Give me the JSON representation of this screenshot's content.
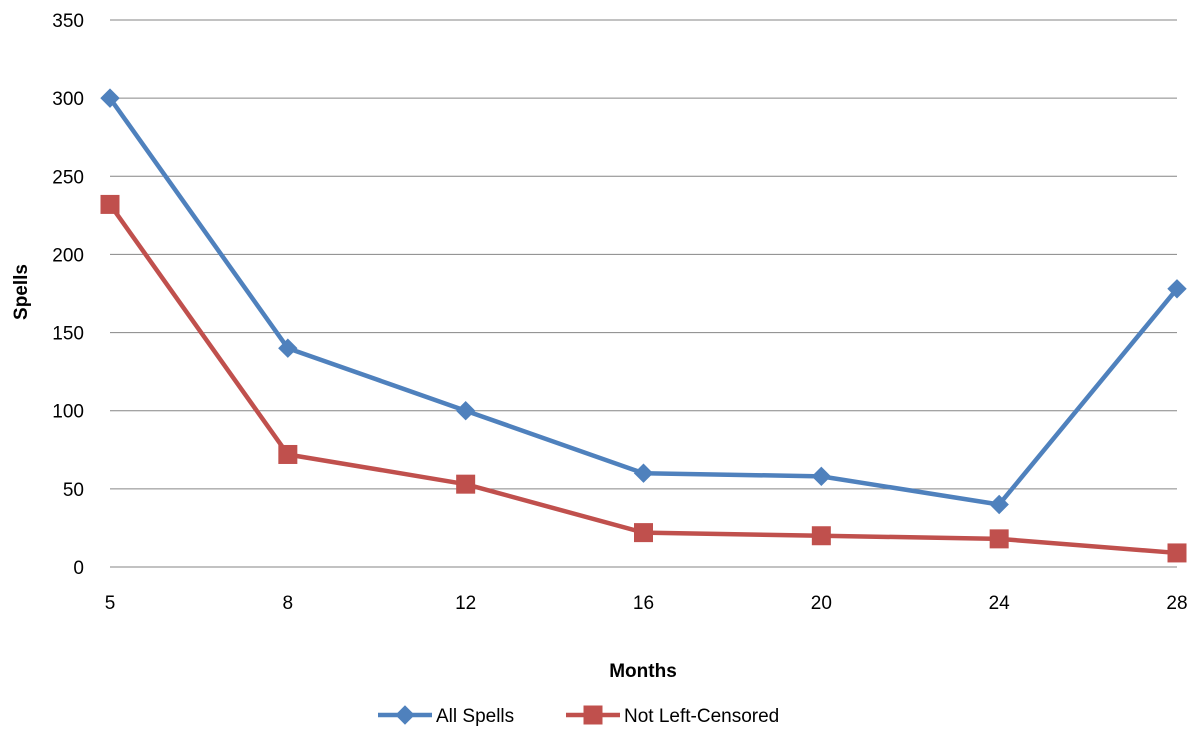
{
  "chart_data": {
    "type": "line",
    "title": "",
    "xlabel": "Months",
    "ylabel": "Spells",
    "x": [
      5,
      8,
      12,
      16,
      20,
      24,
      28
    ],
    "x_tick_labels": [
      "5",
      "8",
      "12",
      "16",
      "20",
      "24",
      "28"
    ],
    "ylim": [
      0,
      350
    ],
    "y_ticks": [
      0,
      50,
      100,
      150,
      200,
      250,
      300,
      350
    ],
    "grid": true,
    "legend_position": "bottom",
    "series": [
      {
        "name": "All Spells",
        "values": [
          300,
          140,
          100,
          60,
          58,
          40,
          178
        ],
        "color": "#4F81BD",
        "marker": "diamond"
      },
      {
        "name": "Not Left-Censored",
        "values": [
          232,
          72,
          53,
          22,
          20,
          18,
          9
        ],
        "color": "#C0504D",
        "marker": "square"
      }
    ]
  }
}
